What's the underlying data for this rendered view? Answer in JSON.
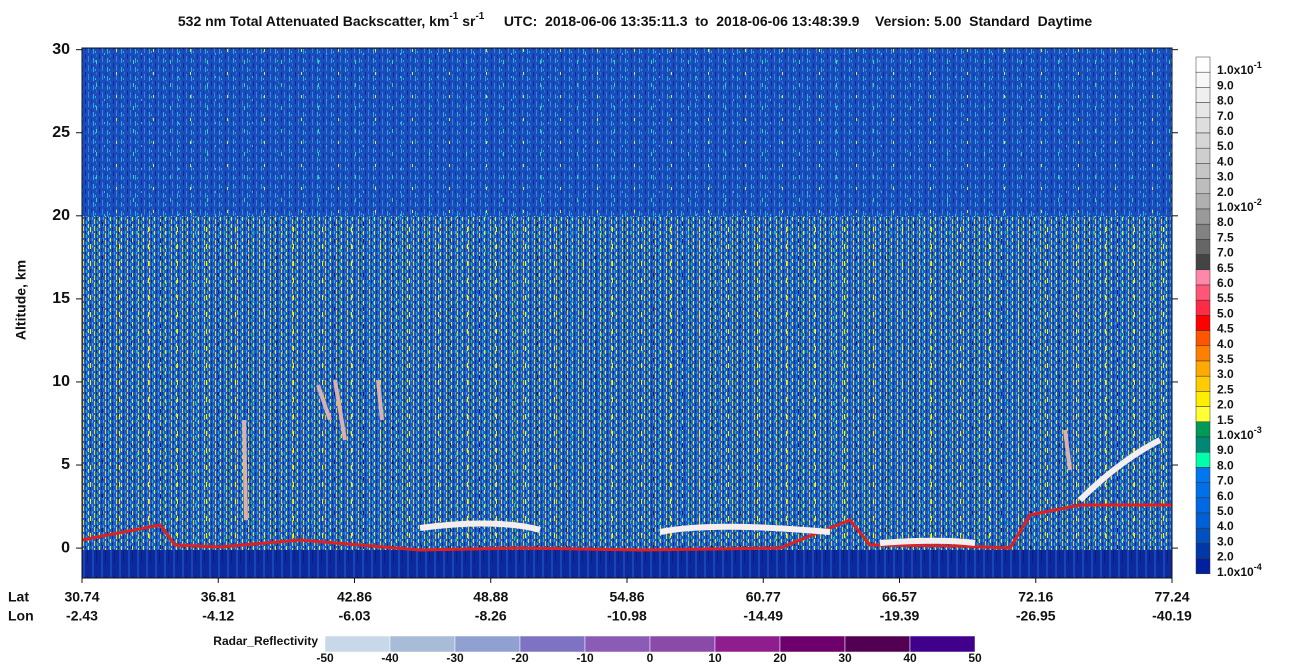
{
  "chart_data": {
    "type": "curtain",
    "title": "532 nm Total Attenuated Backscatter, km",
    "title_exp1": "-1",
    "title_unit2": "sr",
    "title_exp2": "-1",
    "subtitle": "UTC:  2018-06-06 13:35:11.3  to  2018-06-06 13:48:39.9    Version: 5.00  Standard  Daytime",
    "ylabel": "Altitude, km",
    "ylim": [
      -1.8,
      30.1
    ],
    "yticks": [
      0,
      5,
      10,
      15,
      20,
      25,
      30
    ],
    "x_row_labels": [
      "Lat",
      "Lon"
    ],
    "lat": [
      30.74,
      36.81,
      42.86,
      48.88,
      54.86,
      60.77,
      66.57,
      72.16,
      77.24
    ],
    "lon": [
      -2.43,
      -4.12,
      -6.03,
      -8.26,
      -10.98,
      -14.49,
      -19.39,
      -26.95,
      -40.19
    ],
    "colorbar": [
      {
        "text": "1.0x10",
        "exp": "-1",
        "color": "#ffffff"
      },
      {
        "text": "9.0",
        "color": "#f7f7f7"
      },
      {
        "text": "8.0",
        "color": "#efefef"
      },
      {
        "text": "7.0",
        "color": "#e6e6e6"
      },
      {
        "text": "6.0",
        "color": "#dedede"
      },
      {
        "text": "5.0",
        "color": "#d6d6d6"
      },
      {
        "text": "4.0",
        "color": "#cecece"
      },
      {
        "text": "3.0",
        "color": "#c6c6c6"
      },
      {
        "text": "2.0",
        "color": "#bdbdbd"
      },
      {
        "text": "1.0x10",
        "exp": "-2",
        "color": "#b0b0b0"
      },
      {
        "text": "8.0",
        "color": "#9a9a9a"
      },
      {
        "text": "7.5",
        "color": "#828282"
      },
      {
        "text": "7.0",
        "color": "#666666"
      },
      {
        "text": "6.5",
        "color": "#444444"
      },
      {
        "text": "6.0",
        "color": "#ff88aa"
      },
      {
        "text": "5.5",
        "color": "#ff5577"
      },
      {
        "text": "5.0",
        "color": "#ff2a44"
      },
      {
        "text": "4.5",
        "color": "#ff0000"
      },
      {
        "text": "4.0",
        "color": "#ff5500"
      },
      {
        "text": "3.5",
        "color": "#ff8000"
      },
      {
        "text": "3.0",
        "color": "#ffaa00"
      },
      {
        "text": "2.5",
        "color": "#ffcc00"
      },
      {
        "text": "2.0",
        "color": "#ffee00"
      },
      {
        "text": "1.5",
        "color": "#ffff33"
      },
      {
        "text": "1.0x10",
        "exp": "-3",
        "color": "#009955"
      },
      {
        "text": "9.0",
        "color": "#008877"
      },
      {
        "text": "8.0",
        "color": "#00ffaa"
      },
      {
        "text": "7.0",
        "color": "#0077ee"
      },
      {
        "text": "6.0",
        "color": "#0070e8"
      },
      {
        "text": "5.0",
        "color": "#0068e0"
      },
      {
        "text": "4.0",
        "color": "#0060d8"
      },
      {
        "text": "3.0",
        "color": "#0050c0"
      },
      {
        "text": "2.0",
        "color": "#0038a8"
      },
      {
        "text": "1.0x10",
        "exp": "-4",
        "color": "#0020a0"
      }
    ],
    "radar_label": "Radar_Reflectivity",
    "radar_ticks": [
      -50,
      -40,
      -30,
      -20,
      -10,
      0,
      10,
      20,
      30,
      40,
      50
    ],
    "radar_colors": [
      "#c8d8e8",
      "#a8bcd8",
      "#90a0d0",
      "#7e72c2",
      "#8a5cb6",
      "#8a4aa8",
      "#8e1e8e",
      "#6e006e",
      "#520052",
      "#40008c"
    ]
  }
}
